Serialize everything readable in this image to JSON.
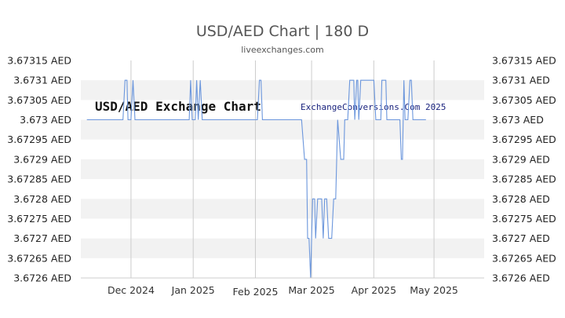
{
  "chart_data": {
    "type": "line",
    "title": "USD/AED Chart | 180 D",
    "subtitle": "liveexchanges.com",
    "watermark_left": "USD/AED Exchange Chart",
    "watermark_right": "ExchangeConversions.Com 2025",
    "y_unit": "AED",
    "ylim": [
      3.6726,
      3.67315
    ],
    "y_ticks": [
      "3.67315",
      "3.6731",
      "3.67305",
      "3.673",
      "3.67295",
      "3.6729",
      "3.67285",
      "3.6728",
      "3.67275",
      "3.6727",
      "3.67265",
      "3.6726"
    ],
    "x_range_days": [
      -25,
      176
    ],
    "x_ticks": [
      {
        "label": "Dec 2024",
        "day": 0
      },
      {
        "label": "Jan 2025",
        "day": 31
      },
      {
        "label": "Feb 2025",
        "day": 62
      },
      {
        "label": "Mar 2025",
        "day": 90
      },
      {
        "label": "Apr 2025",
        "day": 121
      },
      {
        "label": "May 2025",
        "day": 151
      }
    ],
    "line_color": "#6b96dc",
    "band_color": "#f2f2f2",
    "grid": true,
    "series": [
      {
        "points": [
          [
            -22,
            3.673
          ],
          [
            -4,
            3.673
          ],
          [
            -3,
            3.6731
          ],
          [
            -2,
            3.6731
          ],
          [
            -1.5,
            3.673
          ],
          [
            0,
            3.673
          ],
          [
            1,
            3.6731
          ],
          [
            2,
            3.673
          ],
          [
            29,
            3.673
          ],
          [
            29.7,
            3.6731
          ],
          [
            30.5,
            3.673
          ],
          [
            32,
            3.673
          ],
          [
            32.7,
            3.6731
          ],
          [
            33.5,
            3.673
          ],
          [
            34.5,
            3.6731
          ],
          [
            35.5,
            3.673
          ],
          [
            63,
            3.673
          ],
          [
            64,
            3.6731
          ],
          [
            64.8,
            3.6731
          ],
          [
            65.5,
            3.673
          ],
          [
            85,
            3.673
          ],
          [
            86.5,
            3.6729
          ],
          [
            87.5,
            3.6729
          ],
          [
            88,
            3.6727
          ],
          [
            88.7,
            3.6727
          ],
          [
            89.5,
            3.6726
          ],
          [
            90.5,
            3.6728
          ],
          [
            91.5,
            3.6728
          ],
          [
            92,
            3.6727
          ],
          [
            93,
            3.6728
          ],
          [
            95,
            3.6728
          ],
          [
            95.8,
            3.6727
          ],
          [
            96.5,
            3.6728
          ],
          [
            97.5,
            3.6728
          ],
          [
            98.5,
            3.6727
          ],
          [
            100,
            3.6727
          ],
          [
            101,
            3.6728
          ],
          [
            102,
            3.6728
          ],
          [
            103,
            3.673
          ],
          [
            104.5,
            3.6729
          ],
          [
            106,
            3.6729
          ],
          [
            106.5,
            3.673
          ],
          [
            108,
            3.673
          ],
          [
            109,
            3.6731
          ],
          [
            111,
            3.6731
          ],
          [
            111.5,
            3.673
          ],
          [
            112.5,
            3.6731
          ],
          [
            113,
            3.6731
          ],
          [
            113.5,
            3.673
          ],
          [
            114.5,
            3.6731
          ],
          [
            121,
            3.6731
          ],
          [
            122,
            3.673
          ],
          [
            124.5,
            3.673
          ],
          [
            125,
            3.6731
          ],
          [
            127,
            3.6731
          ],
          [
            127.5,
            3.673
          ],
          [
            134,
            3.673
          ],
          [
            134.7,
            3.6729
          ],
          [
            135.3,
            3.6729
          ],
          [
            136,
            3.6731
          ],
          [
            136.6,
            3.673
          ],
          [
            138,
            3.673
          ],
          [
            139,
            3.6731
          ],
          [
            139.7,
            3.6731
          ],
          [
            140.5,
            3.673
          ],
          [
            147,
            3.673
          ]
        ]
      }
    ]
  }
}
